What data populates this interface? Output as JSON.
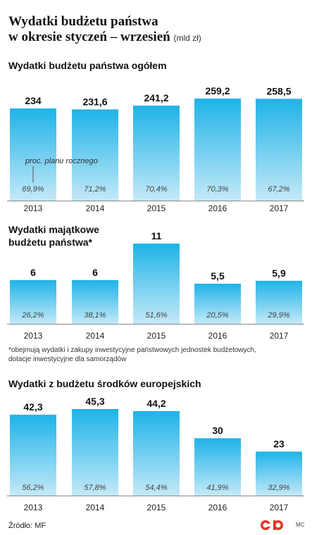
{
  "title_line1": "Wydatki budżetu państwa",
  "title_line2": "w okresie styczeń – wrzesień",
  "unit": "(mld zł)",
  "charts": [
    {
      "section_title_lines": [
        "Wydatki budżetu państwa ogółem"
      ],
      "annotation": "proc. planu rocznego"
    },
    {
      "section_title_lines": [
        "Wydatki majątkowe",
        "budżetu państwa*"
      ]
    },
    {
      "section_title_lines": [
        "Wydatki z budżetu środków europejskich"
      ]
    }
  ],
  "footnote_line1": "*obejmują wydatki i zakupy inwestycyjne państwowych jednostek budżetowych,",
  "footnote_line2": "dotacje inwestycyjne dla samorządów",
  "source": "Źródło: MF",
  "credit": "MC",
  "colors": {
    "bar_top": "#1fb3e8",
    "bar_bottom": "#c4e9f8",
    "accent": "#e63323"
  },
  "chart_data": [
    {
      "type": "bar",
      "title": "Wydatki budżetu państwa ogółem",
      "categories": [
        "2013",
        "2014",
        "2015",
        "2016",
        "2017"
      ],
      "values": [
        234,
        231.6,
        241.2,
        259.2,
        258.5
      ],
      "value_labels": [
        "234",
        "231,6",
        "241,2",
        "259,2",
        "258,5"
      ],
      "secondary_labels": [
        "69,9%",
        "71,2%",
        "70,4%",
        "70,3%",
        "67,2%"
      ],
      "ylim": [
        0,
        259.2
      ]
    },
    {
      "type": "bar",
      "title": "Wydatki majątkowe budżetu państwa*",
      "categories": [
        "2013",
        "2014",
        "2015",
        "2016",
        "2017"
      ],
      "values": [
        6,
        6,
        11,
        5.5,
        5.9
      ],
      "value_labels": [
        "6",
        "6",
        "11",
        "5,5",
        "5,9"
      ],
      "secondary_labels": [
        "26,2%",
        "38,1%",
        "51,6%",
        "20,5%",
        "29,9%"
      ],
      "ylim": [
        0,
        11
      ]
    },
    {
      "type": "bar",
      "title": "Wydatki z budżetu środków europejskich",
      "categories": [
        "2013",
        "2014",
        "2015",
        "2016",
        "2017"
      ],
      "values": [
        42.3,
        45.3,
        44.2,
        30,
        23
      ],
      "value_labels": [
        "42,3",
        "45,3",
        "44,2",
        "30",
        "23"
      ],
      "secondary_labels": [
        "56,2%",
        "57,8%",
        "54,4%",
        "41,9%",
        "32,9%"
      ],
      "ylim": [
        0,
        45.3
      ]
    }
  ]
}
